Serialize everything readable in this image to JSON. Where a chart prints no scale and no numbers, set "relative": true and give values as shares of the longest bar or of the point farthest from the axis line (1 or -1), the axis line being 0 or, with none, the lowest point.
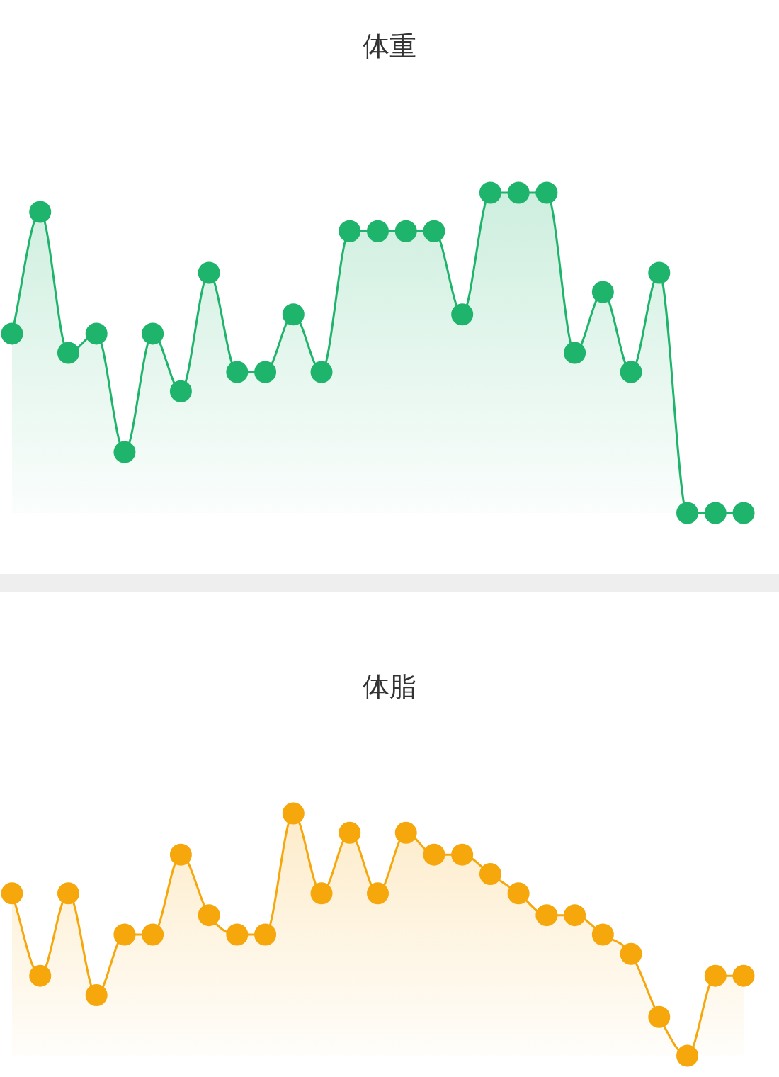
{
  "chart_data": [
    {
      "type": "area",
      "title": "体重",
      "relative": true,
      "marker": "circle",
      "color": "#1fb46c",
      "categories": [
        null,
        null,
        null,
        null,
        null,
        null,
        null,
        null,
        null,
        null,
        null,
        null,
        null,
        null,
        null,
        null,
        null,
        null,
        null,
        null,
        null,
        null,
        null,
        null,
        null,
        null,
        null
      ],
      "values": [
        0.56,
        0.94,
        0.5,
        0.56,
        0.19,
        0.56,
        0.38,
        0.75,
        0.44,
        0.44,
        0.62,
        0.44,
        0.88,
        0.88,
        0.88,
        0.88,
        0.62,
        1,
        1,
        1,
        0.5,
        0.69,
        0.44,
        0.75,
        0,
        0,
        0
      ]
    },
    {
      "type": "area",
      "title": "体脂",
      "relative": true,
      "marker": "circle",
      "color": "#f5a70c",
      "categories": [
        null,
        null,
        null,
        null,
        null,
        null,
        null,
        null,
        null,
        null,
        null,
        null,
        null,
        null,
        null,
        null,
        null,
        null,
        null,
        null,
        null,
        null,
        null,
        null,
        null,
        null,
        null
      ],
      "values": [
        0.67,
        0.33,
        0.67,
        0.25,
        0.5,
        0.5,
        0.83,
        0.58,
        0.5,
        0.5,
        1,
        0.67,
        0.92,
        0.67,
        0.92,
        0.83,
        0.83,
        0.75,
        0.67,
        0.58,
        0.58,
        0.5,
        0.42,
        0.16,
        0,
        0.33,
        0.33
      ]
    }
  ]
}
